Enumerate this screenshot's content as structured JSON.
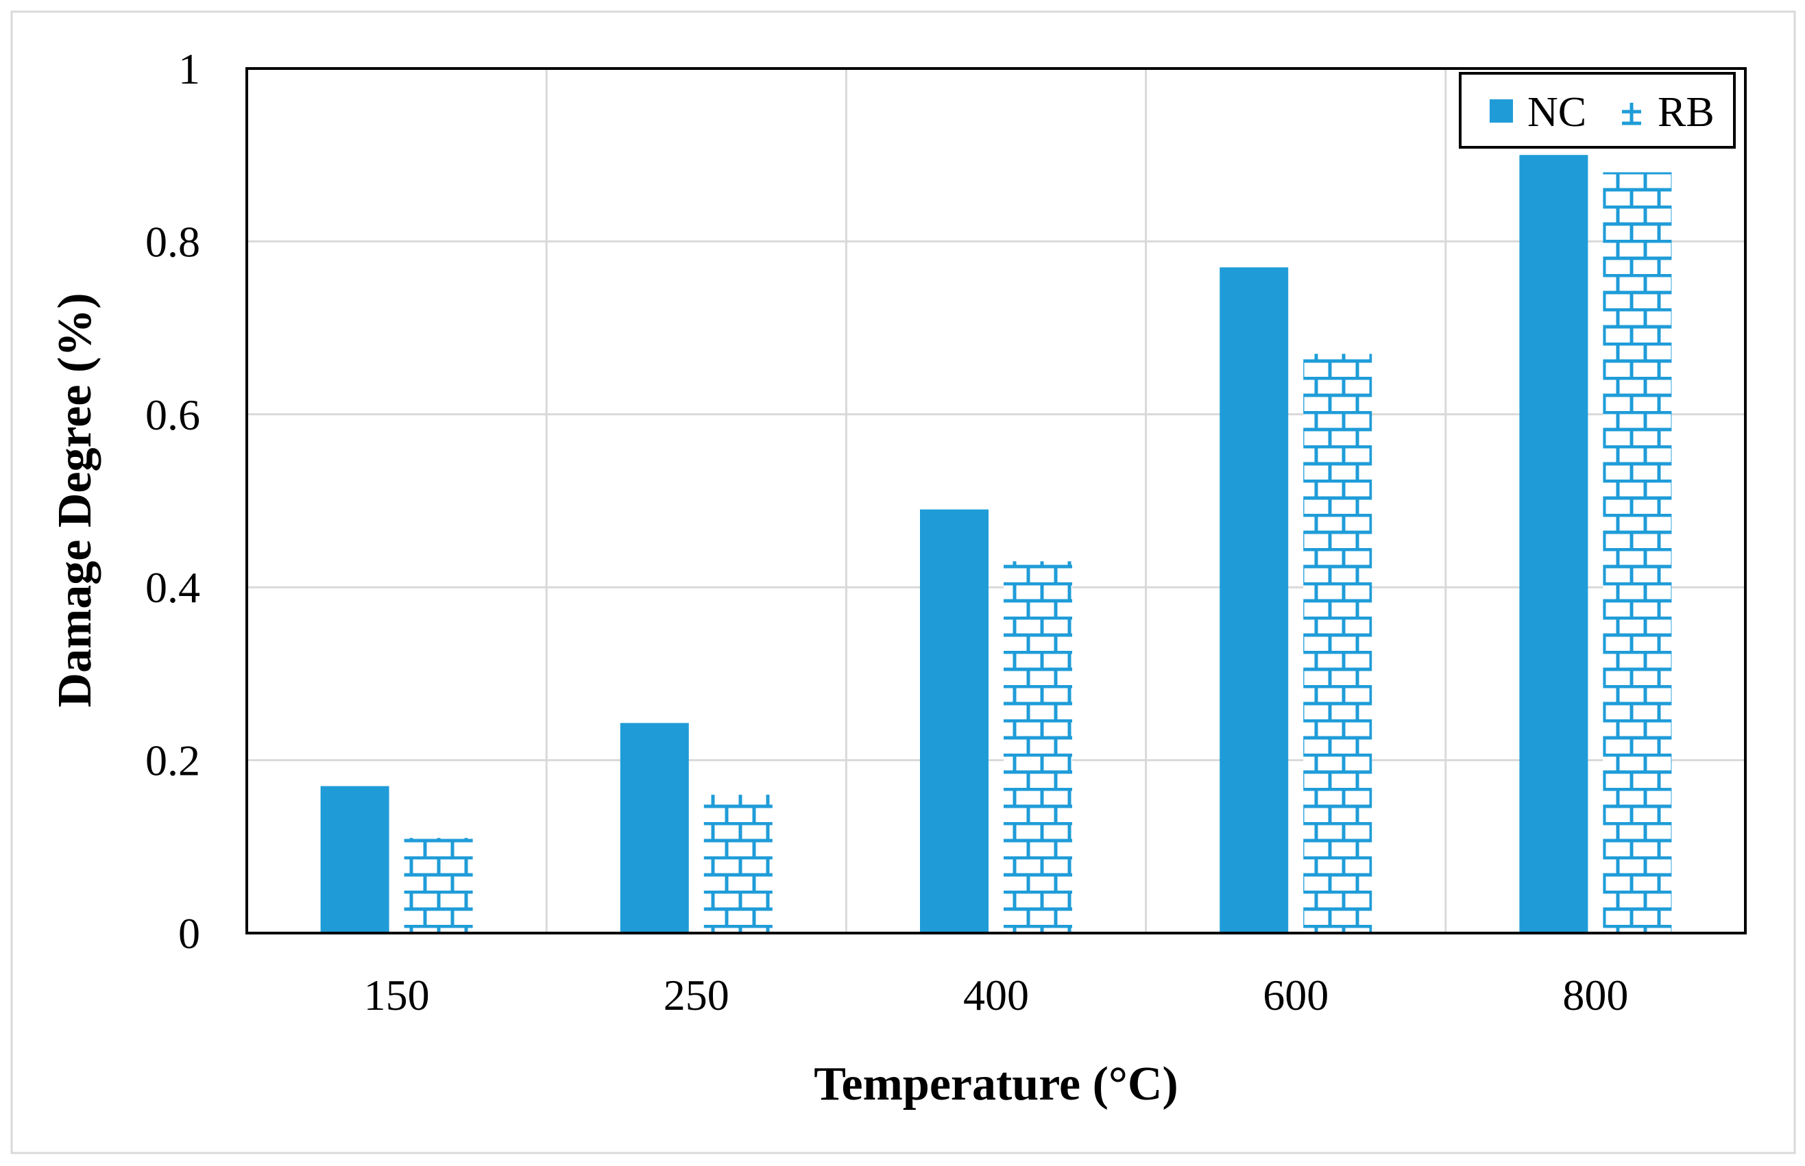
{
  "chart_data": {
    "type": "bar",
    "title": "",
    "xlabel": "Temperature (°C)",
    "ylabel": "Damage Degree (%)",
    "categories": [
      "150",
      "250",
      "400",
      "600",
      "800"
    ],
    "series": [
      {
        "name": "NC",
        "pattern": "solid",
        "values": [
          0.17,
          0.243,
          0.49,
          0.77,
          0.9
        ]
      },
      {
        "name": "RB",
        "pattern": "brick",
        "values": [
          0.11,
          0.16,
          0.43,
          0.67,
          0.88
        ]
      }
    ],
    "ylim": [
      0,
      1
    ],
    "yticks": [
      0,
      0.2,
      0.4,
      0.6,
      0.8,
      1
    ],
    "ytick_labels": [
      "0",
      "0.2",
      "0.4",
      "0.6",
      "0.8",
      "1"
    ],
    "grid": true,
    "legend_position": "top-right",
    "colors": {
      "bar": "#1f9cd8",
      "grid": "#d9d9d9",
      "axis": "#000000",
      "frame": "#d9d9d9"
    }
  }
}
